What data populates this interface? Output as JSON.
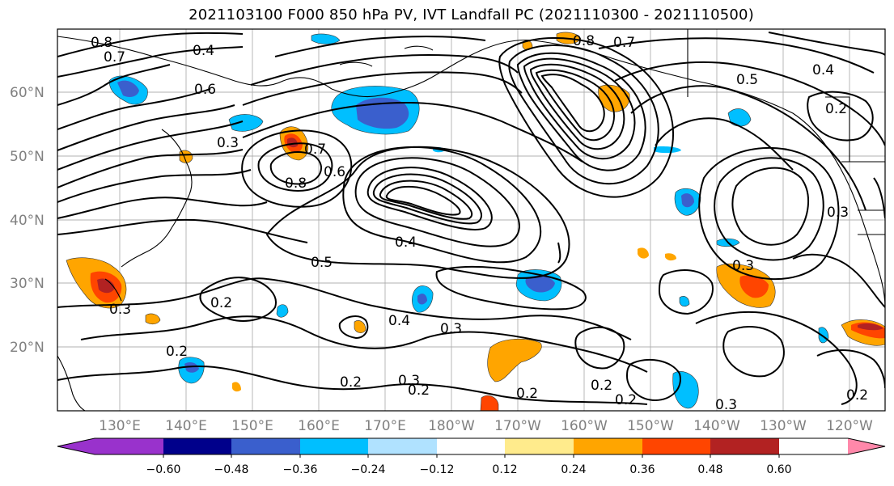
{
  "title": "2021103100 F000 850 hPa PV, IVT Landfall PC (2021110300 - 2021110500)",
  "latitude_labels": [
    "60°N",
    "50°N",
    "40°N",
    "30°N",
    "20°N"
  ],
  "longitude_labels": [
    "130°E",
    "140°E",
    "150°E",
    "160°E",
    "170°E",
    "180°W",
    "170°W",
    "160°W",
    "150°W",
    "140°W",
    "130°W",
    "120°W"
  ],
  "colorbar": {
    "ticks": [
      "−0.60",
      "−0.48",
      "−0.36",
      "−0.24",
      "−0.12",
      "0.12",
      "0.24",
      "0.36",
      "0.48",
      "0.60"
    ],
    "colors": [
      "#9932cc",
      "#00008b",
      "#3a5fcd",
      "#00bfff",
      "#b0e2ff",
      "#ffffff",
      "#ffeb8c",
      "#ffa500",
      "#ff4500",
      "#b22222",
      "#ff88aa"
    ]
  },
  "contour_labels": [
    {
      "text": "0.8"
    },
    {
      "text": "0.7"
    },
    {
      "text": "0.4"
    },
    {
      "text": "0.6"
    },
    {
      "text": "0.3"
    },
    {
      "text": "0.7"
    },
    {
      "text": "0.8"
    },
    {
      "text": "0.6"
    },
    {
      "text": "0.5"
    },
    {
      "text": "0.4"
    },
    {
      "text": "0.3"
    },
    {
      "text": "0.2"
    },
    {
      "text": "0.2"
    },
    {
      "text": "0.3"
    },
    {
      "text": "0.2"
    },
    {
      "text": "0.4"
    },
    {
      "text": "0.3"
    },
    {
      "text": "0.2"
    },
    {
      "text": "0.2"
    },
    {
      "text": "0.3"
    },
    {
      "text": "0.3"
    },
    {
      "text": "0.2"
    },
    {
      "text": "0.8"
    },
    {
      "text": "0.7"
    },
    {
      "text": "0.5"
    },
    {
      "text": "0.4"
    },
    {
      "text": "0.2"
    },
    {
      "text": "0.3"
    },
    {
      "text": "0.2"
    },
    {
      "text": "0.2"
    }
  ]
}
